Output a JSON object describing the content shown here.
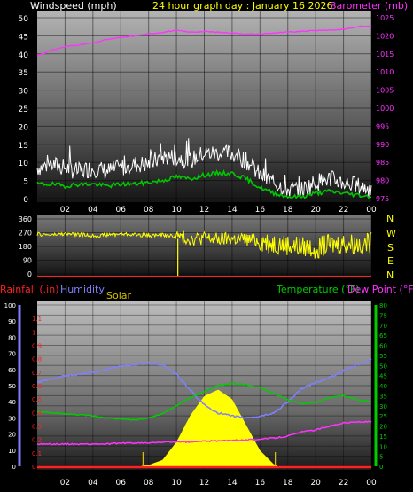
{
  "header": {
    "windspeed_label": "Windspeed (mph)",
    "title": "24 hour graph day : January 16 2026",
    "barometer_label": "Barometer (mb)"
  },
  "colors": {
    "windspeed_label": "#ffffff",
    "title": "#ffff00",
    "barometer": "#ff33ff",
    "wind_gust": "#ffffff",
    "wind_avg": "#00c800",
    "wind_dir": "#ffff00",
    "rainfall": "#ff2020",
    "humidity": "#8080ff",
    "solar": "#ffff00",
    "temperature": "#00cc00",
    "dewpoint": "#ff33ff"
  },
  "direction_labels": [
    "N",
    "W",
    "S",
    "E",
    "N"
  ],
  "bottom_labels": {
    "rainfall": "Rainfall (.in)",
    "humidity": "Humidity",
    "solar": "Solar",
    "temperature": "Temperature (°F)",
    "dewpoint": "Dew Point (°F)"
  },
  "chart_data": [
    {
      "type": "line",
      "panel": "wind-barometer",
      "x_ticks": [
        "02",
        "04",
        "06",
        "08",
        "10",
        "12",
        "14",
        "16",
        "18",
        "20",
        "22",
        "00"
      ],
      "y_left_ticks": [
        "0",
        "5",
        "10",
        "15",
        "20",
        "25",
        "30",
        "35",
        "40",
        "45",
        "50"
      ],
      "y_left_range": [
        0,
        50
      ],
      "y_right_ticks": [
        "975",
        "980",
        "985",
        "990",
        "995",
        "1000",
        "1005",
        "1010",
        "1015",
        "1020",
        "1025"
      ],
      "y_right_range": [
        975,
        1025
      ],
      "series": [
        {
          "name": "Windspeed (mph)",
          "role": "gust",
          "x": [
            0,
            1,
            2,
            3,
            4,
            5,
            6,
            7,
            8,
            9,
            10,
            11,
            12,
            13,
            14,
            15,
            16,
            17,
            18,
            19,
            20,
            21,
            22,
            23,
            24
          ],
          "values": [
            8,
            9,
            8,
            7,
            8,
            7,
            8,
            9,
            9,
            11,
            11,
            10,
            12,
            12,
            12,
            10,
            6,
            4,
            2,
            2,
            4,
            5,
            4,
            3,
            2
          ]
        },
        {
          "name": "Windspeed (mph)",
          "role": "average",
          "x": [
            0,
            1,
            2,
            3,
            4,
            5,
            6,
            7,
            8,
            9,
            10,
            11,
            12,
            13,
            14,
            15,
            16,
            17,
            18,
            19,
            20,
            21,
            22,
            23,
            24
          ],
          "values": [
            4,
            4,
            3.5,
            4,
            4,
            3.5,
            4,
            4,
            4.5,
            5,
            6,
            5.5,
            6.5,
            7,
            7,
            5.5,
            3,
            1.5,
            0.5,
            0.5,
            1.5,
            2,
            1.5,
            1,
            0.5
          ]
        },
        {
          "name": "Barometer (mb)",
          "x": [
            0,
            1,
            2,
            3,
            4,
            5,
            6,
            7,
            8,
            9,
            10,
            11,
            12,
            13,
            14,
            15,
            16,
            17,
            18,
            19,
            20,
            21,
            22,
            23,
            24
          ],
          "values": [
            1014.5,
            1016,
            1017,
            1017.5,
            1018,
            1019,
            1019.5,
            1020,
            1020.5,
            1021,
            1021.5,
            1021,
            1021.2,
            1021,
            1020.8,
            1020.5,
            1020.5,
            1020.8,
            1021,
            1021.2,
            1021.5,
            1021.6,
            1021.8,
            1022.5,
            1022.8
          ]
        }
      ]
    },
    {
      "type": "line",
      "panel": "wind-direction",
      "x_ticks": [
        "02",
        "04",
        "06",
        "08",
        "10",
        "12",
        "14",
        "16",
        "18",
        "20",
        "22",
        "00"
      ],
      "y_ticks": [
        "0",
        "90",
        "180",
        "270",
        "360"
      ],
      "y_range": [
        0,
        360
      ],
      "series": [
        {
          "name": "Wind direction",
          "x": [
            0,
            1,
            2,
            3,
            4,
            5,
            6,
            7,
            8,
            9,
            10,
            11,
            12,
            13,
            14,
            15,
            16,
            17,
            18,
            19,
            20,
            21,
            22,
            23,
            24
          ],
          "values": [
            260,
            255,
            262,
            258,
            250,
            255,
            262,
            258,
            252,
            255,
            245,
            230,
            235,
            225,
            230,
            225,
            215,
            200,
            190,
            175,
            170,
            190,
            200,
            195,
            205
          ]
        }
      ]
    },
    {
      "type": "line",
      "panel": "rain-humidity-solar-temp",
      "x_ticks": [
        "02",
        "04",
        "06",
        "08",
        "10",
        "12",
        "14",
        "16",
        "18",
        "20",
        "22",
        "00"
      ],
      "y_rain_ticks": [
        "0",
        "0.1",
        "0.2",
        "0.3",
        "0.4",
        "0.5",
        "0.6",
        "0.7",
        "0.8",
        "0.9",
        "1",
        "1.1"
      ],
      "y_rain_range": [
        0,
        1.2
      ],
      "y_humidity_ticks": [
        "0",
        "10",
        "20",
        "30",
        "40",
        "50",
        "60",
        "70",
        "80",
        "90",
        "100"
      ],
      "y_humidity_range": [
        0,
        100
      ],
      "y_temp_ticks": [
        "0",
        "5",
        "10",
        "15",
        "20",
        "25",
        "30",
        "35",
        "40",
        "45",
        "50",
        "55",
        "60",
        "65",
        "70",
        "75",
        "80"
      ],
      "y_temp_range": [
        0,
        80
      ],
      "series": [
        {
          "name": "Humidity",
          "x": [
            0,
            1,
            2,
            3,
            4,
            5,
            6,
            7,
            8,
            9,
            10,
            11,
            12,
            13,
            14,
            15,
            16,
            17,
            18,
            19,
            20,
            21,
            22,
            23,
            24
          ],
          "values": [
            52,
            54,
            56,
            57,
            58,
            60,
            62,
            63,
            64,
            63,
            57,
            47,
            38,
            33,
            31,
            30,
            31,
            33,
            40,
            48,
            52,
            55,
            59,
            63,
            66
          ]
        },
        {
          "name": "Temperature (°F)",
          "x": [
            0,
            1,
            2,
            3,
            4,
            5,
            6,
            7,
            8,
            9,
            10,
            11,
            12,
            13,
            14,
            15,
            16,
            17,
            18,
            19,
            20,
            21,
            22,
            23,
            24
          ],
          "values": [
            27,
            26.5,
            26,
            25.5,
            25,
            24,
            23.5,
            23,
            24,
            26,
            30,
            34,
            37,
            40,
            41,
            40.5,
            39,
            36,
            33,
            31,
            31.5,
            34,
            35,
            33,
            32
          ]
        },
        {
          "name": "Dew Point (°F)",
          "x": [
            0,
            1,
            2,
            3,
            4,
            5,
            6,
            7,
            8,
            9,
            10,
            11,
            12,
            13,
            14,
            15,
            16,
            17,
            18,
            19,
            20,
            21,
            22,
            23,
            24
          ],
          "values": [
            11,
            11,
            11,
            11,
            11,
            11,
            11.5,
            11.5,
            11.5,
            12,
            12,
            12,
            12.5,
            12.5,
            13,
            13,
            13.5,
            14,
            15,
            17,
            18,
            20,
            21.5,
            22,
            22
          ]
        },
        {
          "name": "Solar",
          "x": [
            0,
            1,
            2,
            3,
            4,
            5,
            6,
            7,
            8,
            9,
            10,
            11,
            12,
            13,
            14,
            15,
            16,
            17,
            18,
            19,
            20,
            21,
            22,
            23,
            24
          ],
          "values": [
            0,
            0,
            0,
            0,
            0,
            0,
            0,
            0,
            2,
            10,
            38,
            80,
            110,
            120,
            105,
            65,
            25,
            3,
            0,
            0,
            0,
            0,
            0,
            0,
            0
          ]
        },
        {
          "name": "Rainfall (.in)",
          "x": [
            0,
            24
          ],
          "values": [
            0,
            0
          ]
        }
      ]
    }
  ]
}
